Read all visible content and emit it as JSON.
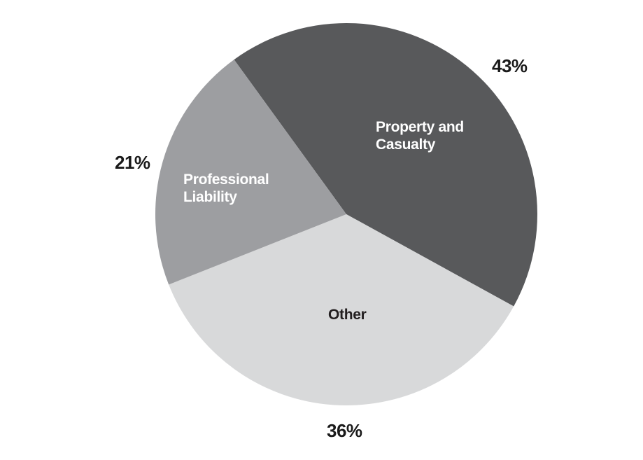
{
  "chart_data": {
    "type": "pie",
    "title": "",
    "legend": "none",
    "background": "#ffffff",
    "start_angle_deg": -36,
    "center": [
      495,
      306
    ],
    "radius": 273,
    "categories": [
      "Property and Casualty",
      "Other",
      "Professional Liability"
    ],
    "values": [
      43,
      36,
      21
    ],
    "slices": [
      {
        "id": "property-casualty",
        "label": "Property and Casualty",
        "label_lines": [
          "Property and",
          "Casualty"
        ],
        "value": 43,
        "pct_label": "43%",
        "color": "#58595b",
        "text_color": "#ffffff"
      },
      {
        "id": "other",
        "label": "Other",
        "label_lines": [
          "Other"
        ],
        "value": 36,
        "pct_label": "36%",
        "color": "#d8d9da",
        "text_color": "#231f20"
      },
      {
        "id": "professional-liability",
        "label": "Professional Liability",
        "label_lines": [
          "Professional",
          "Liability"
        ],
        "value": 21,
        "pct_label": "21%",
        "color": "#9d9ea1",
        "text_color": "#ffffff"
      }
    ]
  }
}
